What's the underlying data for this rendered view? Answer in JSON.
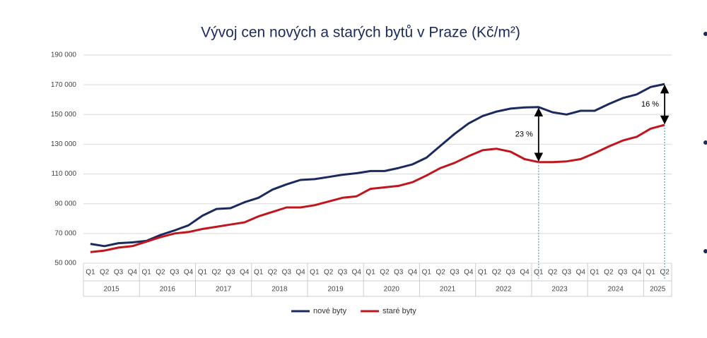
{
  "chart_data": {
    "type": "line",
    "title": "Vývoj cen nových a starých bytů v Praze (Kč/m²)",
    "categories": [
      "Q1",
      "Q2",
      "Q3",
      "Q4",
      "Q1",
      "Q2",
      "Q3",
      "Q4",
      "Q1",
      "Q2",
      "Q3",
      "Q4",
      "Q1",
      "Q2",
      "Q3",
      "Q4",
      "Q1",
      "Q2",
      "Q3",
      "Q4",
      "Q1",
      "Q2",
      "Q3",
      "Q4",
      "Q1",
      "Q2",
      "Q3",
      "Q4",
      "Q1",
      "Q2",
      "Q3",
      "Q4",
      "Q1",
      "Q2",
      "Q3",
      "Q4",
      "Q1",
      "Q2",
      "Q3",
      "Q4",
      "Q1",
      "Q2"
    ],
    "x_groups": [
      {
        "label": "2015",
        "span": 4
      },
      {
        "label": "2016",
        "span": 4
      },
      {
        "label": "2017",
        "span": 4
      },
      {
        "label": "2018",
        "span": 4
      },
      {
        "label": "2019",
        "span": 4
      },
      {
        "label": "2020",
        "span": 4
      },
      {
        "label": "2021",
        "span": 4
      },
      {
        "label": "2022",
        "span": 4
      },
      {
        "label": "2023",
        "span": 4
      },
      {
        "label": "2024",
        "span": 4
      },
      {
        "label": "2025",
        "span": 2
      }
    ],
    "series": [
      {
        "name": "nové byty",
        "color": "#1b2a5e",
        "values": [
          63000,
          61500,
          63500,
          64000,
          65000,
          69000,
          72000,
          75500,
          82000,
          86500,
          87000,
          91000,
          94000,
          99500,
          103000,
          106000,
          106500,
          108000,
          109500,
          110500,
          112000,
          112000,
          114000,
          116500,
          121000,
          129000,
          137000,
          144000,
          149000,
          152000,
          154000,
          154800,
          155000,
          151500,
          150000,
          152500,
          152500,
          157000,
          161000,
          163500,
          168500,
          170500
        ]
      },
      {
        "name": "staré byty",
        "color": "#c0161e",
        "values": [
          57500,
          58500,
          60500,
          61500,
          64500,
          67500,
          70000,
          71000,
          73000,
          74500,
          76000,
          77500,
          81500,
          84500,
          87500,
          87500,
          89000,
          91500,
          94000,
          95000,
          100000,
          101000,
          102000,
          104500,
          109000,
          114000,
          117500,
          122000,
          126000,
          127000,
          125000,
          120000,
          118000,
          118000,
          118500,
          120000,
          124000,
          128500,
          132500,
          135000,
          140500,
          143000
        ]
      }
    ],
    "annotations": [
      {
        "text": "23 %"
      },
      {
        "text": "16 %"
      }
    ],
    "ylim": [
      50000,
      190000
    ],
    "yticks": [
      {
        "value": 50000,
        "label": "50 000"
      },
      {
        "value": 70000,
        "label": "70 000"
      },
      {
        "value": 90000,
        "label": "90 000"
      },
      {
        "value": 110000,
        "label": "110 000"
      },
      {
        "value": 130000,
        "label": "130 000"
      },
      {
        "value": 150000,
        "label": "150 000"
      },
      {
        "value": 170000,
        "label": "170 000"
      },
      {
        "value": 190000,
        "label": "190 000"
      }
    ],
    "grid": true,
    "legend": "bottom"
  }
}
